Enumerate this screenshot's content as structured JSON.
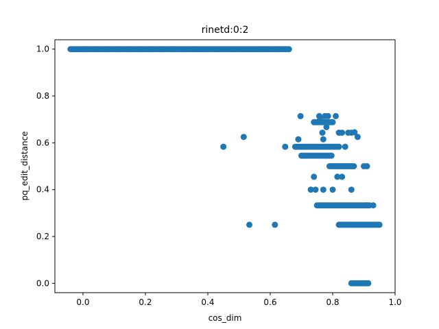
{
  "chart_data": {
    "type": "scatter",
    "title": "rinetd:0:2",
    "xlabel": "cos_dim",
    "ylabel": "pq_edit_distance",
    "xlim": [
      -0.09,
      1.0
    ],
    "ylim": [
      -0.04,
      1.04
    ],
    "xticks": [
      "0.0",
      "0.2",
      "0.4",
      "0.6",
      "0.8",
      "1.0"
    ],
    "yticks": [
      "0.0",
      "0.2",
      "0.4",
      "0.6",
      "0.8",
      "1.0"
    ],
    "grid": false,
    "marker_color": "#1f77b4",
    "bands": [
      {
        "y": 1.0,
        "x_from": -0.04,
        "x_to": 0.66,
        "step": 0.005
      },
      {
        "y": 0.25,
        "x_from": 0.82,
        "x_to": 0.95,
        "step": 0.005
      },
      {
        "y": 0.333,
        "x_from": 0.75,
        "x_to": 0.92,
        "step": 0.006
      },
      {
        "y": 0.583,
        "x_from": 0.68,
        "x_to": 0.82,
        "step": 0.006
      },
      {
        "y": 0.5,
        "x_from": 0.79,
        "x_to": 0.87,
        "step": 0.006
      },
      {
        "y": 0.545,
        "x_from": 0.7,
        "x_to": 0.8,
        "step": 0.006
      },
      {
        "y": 0.0,
        "x_from": 0.86,
        "x_to": 0.915,
        "step": 0.006
      },
      {
        "y": 0.688,
        "x_from": 0.74,
        "x_to": 0.8,
        "step": 0.006
      }
    ],
    "points": [
      [
        0.45,
        0.583
      ],
      [
        0.515,
        0.625
      ],
      [
        0.533,
        0.25
      ],
      [
        0.615,
        0.25
      ],
      [
        0.648,
        0.583
      ],
      [
        0.69,
        0.615
      ],
      [
        0.697,
        0.714
      ],
      [
        0.73,
        0.4
      ],
      [
        0.74,
        0.455
      ],
      [
        0.745,
        0.4
      ],
      [
        0.757,
        0.714
      ],
      [
        0.767,
        0.643
      ],
      [
        0.77,
        0.4
      ],
      [
        0.775,
        0.714
      ],
      [
        0.78,
        0.667
      ],
      [
        0.785,
        0.714
      ],
      [
        0.8,
        0.4
      ],
      [
        0.81,
        0.714
      ],
      [
        0.815,
        0.455
      ],
      [
        0.82,
        0.643
      ],
      [
        0.83,
        0.643
      ],
      [
        0.83,
        0.455
      ],
      [
        0.84,
        0.5
      ],
      [
        0.85,
        0.643
      ],
      [
        0.86,
        0.643
      ],
      [
        0.86,
        0.4
      ],
      [
        0.87,
        0.645
      ],
      [
        0.88,
        0.625
      ],
      [
        0.9,
        0.5
      ],
      [
        0.91,
        0.5
      ],
      [
        0.91,
        0.333
      ],
      [
        0.93,
        0.333
      ],
      [
        0.82,
        0.583
      ],
      [
        0.84,
        0.583
      ],
      [
        0.77,
        0.615
      ],
      [
        0.76,
        0.7
      ]
    ]
  }
}
